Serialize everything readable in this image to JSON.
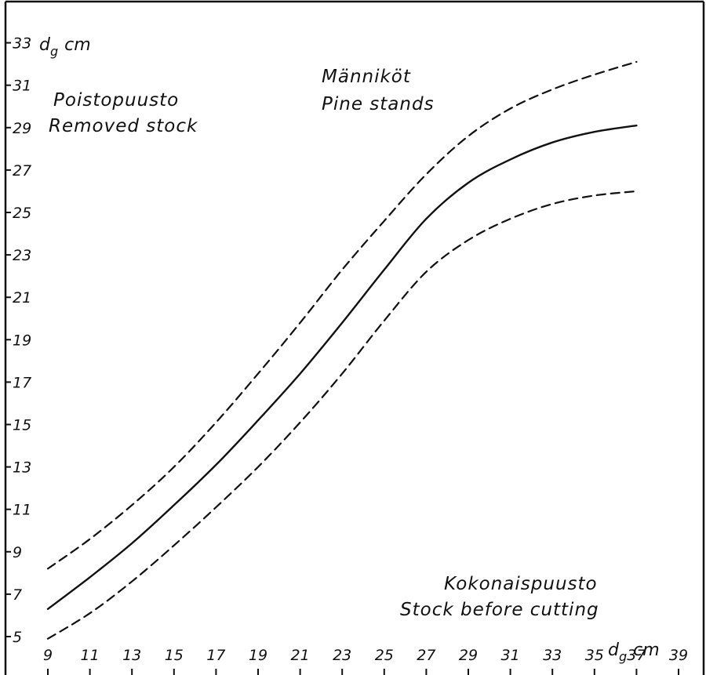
{
  "chart_data": {
    "type": "line",
    "title_lines": [
      "Männiköt",
      "Pine stands"
    ],
    "annotations": {
      "removed": [
        "Poistopuusto",
        "Removed stock"
      ],
      "total": [
        "Kokonaispuusto",
        "Stock before cutting"
      ]
    },
    "xlabel": {
      "base": "d",
      "sub": "g",
      "unit": "cm"
    },
    "ylabel": {
      "base": "d",
      "sub": "g",
      "unit": "cm"
    },
    "xlim": [
      9,
      39
    ],
    "ylim": [
      4.3,
      34.4
    ],
    "x_ticks": [
      9,
      11,
      13,
      15,
      17,
      19,
      21,
      23,
      25,
      27,
      29,
      31,
      33,
      35,
      37,
      39
    ],
    "x_tick_labels": [
      "9",
      "11",
      "13",
      "15",
      "17",
      "19",
      "21",
      "23",
      "25",
      "27",
      "29",
      "31",
      "33",
      "35",
      "37",
      "39"
    ],
    "y_ticks": [
      5,
      7,
      9,
      11,
      13,
      15,
      17,
      19,
      21,
      23,
      25,
      27,
      29,
      31,
      33
    ],
    "y_tick_labels": [
      "5",
      "7",
      "9",
      "11",
      "13",
      "15",
      "17",
      "19",
      "21",
      "23",
      "25",
      "27",
      "29",
      "31",
      "33"
    ],
    "grid": false,
    "series": [
      {
        "style": "dashed",
        "x": [
          9,
          11,
          13,
          15,
          17,
          19,
          21,
          23,
          25,
          27,
          29,
          31,
          33,
          35,
          37
        ],
        "y": [
          8.2,
          9.6,
          11.2,
          13.0,
          15.1,
          17.4,
          19.8,
          22.3,
          24.6,
          26.8,
          28.6,
          29.9,
          30.8,
          31.5,
          32.1
        ]
      },
      {
        "style": "solid",
        "x": [
          9,
          11,
          13,
          15,
          17,
          19,
          21,
          23,
          25,
          27,
          29,
          31,
          33,
          35,
          37
        ],
        "y": [
          6.3,
          7.8,
          9.4,
          11.2,
          13.1,
          15.2,
          17.4,
          19.8,
          22.3,
          24.7,
          26.4,
          27.5,
          28.3,
          28.8,
          29.1
        ]
      },
      {
        "style": "dashed",
        "x": [
          9,
          11,
          13,
          15,
          17,
          19,
          21,
          23,
          25,
          27,
          29,
          31,
          33,
          35,
          37
        ],
        "y": [
          4.9,
          6.1,
          7.6,
          9.3,
          11.1,
          13.0,
          15.1,
          17.4,
          19.9,
          22.2,
          23.7,
          24.7,
          25.4,
          25.8,
          26.0
        ]
      }
    ]
  }
}
